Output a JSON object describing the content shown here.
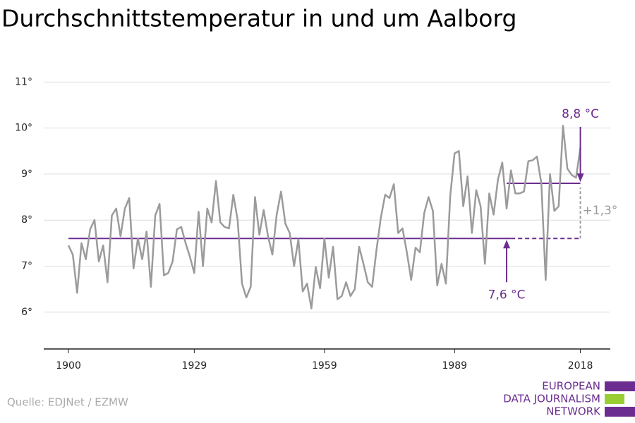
{
  "chart_data": {
    "type": "line",
    "title": "Durchschnittstemperatur in und um Aalborg",
    "x": [
      1900,
      1901,
      1902,
      1903,
      1904,
      1905,
      1906,
      1907,
      1908,
      1909,
      1910,
      1911,
      1912,
      1913,
      1914,
      1915,
      1916,
      1917,
      1918,
      1919,
      1920,
      1921,
      1922,
      1923,
      1924,
      1925,
      1926,
      1927,
      1928,
      1929,
      1930,
      1931,
      1932,
      1933,
      1934,
      1935,
      1936,
      1937,
      1938,
      1939,
      1940,
      1941,
      1942,
      1943,
      1944,
      1945,
      1946,
      1947,
      1948,
      1949,
      1950,
      1951,
      1952,
      1953,
      1954,
      1955,
      1956,
      1957,
      1958,
      1959,
      1960,
      1961,
      1962,
      1963,
      1964,
      1965,
      1966,
      1967,
      1968,
      1969,
      1970,
      1971,
      1972,
      1973,
      1974,
      1975,
      1976,
      1977,
      1978,
      1979,
      1980,
      1981,
      1982,
      1983,
      1984,
      1985,
      1986,
      1987,
      1988,
      1989,
      1990,
      1991,
      1992,
      1993,
      1994,
      1995,
      1996,
      1997,
      1998,
      1999,
      2000,
      2001,
      2002,
      2003,
      2004,
      2005,
      2006,
      2007,
      2008,
      2009,
      2010,
      2011,
      2012,
      2013,
      2014,
      2015,
      2016,
      2017,
      2018
    ],
    "series": [
      {
        "color": "#9b9b9b",
        "values": [
          7.45,
          7.25,
          6.42,
          7.5,
          7.15,
          7.8,
          8.0,
          7.1,
          7.45,
          6.65,
          8.1,
          8.25,
          7.65,
          8.25,
          8.48,
          6.95,
          7.6,
          7.15,
          7.75,
          6.55,
          8.1,
          8.35,
          6.8,
          6.85,
          7.1,
          7.8,
          7.85,
          7.5,
          7.2,
          6.85,
          8.18,
          7.0,
          8.25,
          7.95,
          8.85,
          7.95,
          7.85,
          7.82,
          8.55,
          8.0,
          6.62,
          6.32,
          6.55,
          8.5,
          7.68,
          8.22,
          7.65,
          7.25,
          8.12,
          8.62,
          7.92,
          7.72,
          7.0,
          7.58,
          6.45,
          6.62,
          6.08,
          6.98,
          6.52,
          7.6,
          6.75,
          7.42,
          6.28,
          6.35,
          6.65,
          6.35,
          6.5,
          7.42,
          7.05,
          6.65,
          6.55,
          7.35,
          8.05,
          8.55,
          8.48,
          8.78,
          7.72,
          7.82,
          7.3,
          6.7,
          7.4,
          7.3,
          8.15,
          8.5,
          8.2,
          6.58,
          7.05,
          6.62,
          8.52,
          9.45,
          9.5,
          8.3,
          8.95,
          7.72,
          8.65,
          8.3,
          7.05,
          8.58,
          8.12,
          8.88,
          9.25,
          8.25,
          9.08,
          8.58,
          8.58,
          8.62,
          9.28,
          9.3,
          9.38,
          8.8,
          6.7,
          9.0,
          8.2,
          8.3,
          10.05,
          9.12,
          8.98,
          8.92,
          9.57
        ]
      }
    ],
    "xlim": [
      1894.3,
      2024.9
    ],
    "xticks": [
      1900,
      1929,
      1959,
      1989,
      2018
    ],
    "ylim": [
      5.2,
      11.25
    ],
    "yticks": [
      {
        "value": 6,
        "label": "6°"
      },
      {
        "value": 7,
        "label": "7°"
      },
      {
        "value": 8,
        "label": "8°"
      },
      {
        "value": 9,
        "label": "9°"
      },
      {
        "value": 10,
        "label": "10°"
      },
      {
        "value": 11,
        "label": "11°"
      }
    ],
    "grid": true,
    "reference_lines": [
      {
        "value": 7.6,
        "label": "7,6 °C",
        "color": "#6b2d8f",
        "label_position": "below",
        "arrow_x": 2001,
        "segments": [
          {
            "from": 1900,
            "to": 2002,
            "style": "solid"
          },
          {
            "from": 2002,
            "to": 2018,
            "style": "dashed"
          }
        ]
      },
      {
        "value": 8.8,
        "label": "8,8 °C",
        "color": "#6b2d8f",
        "label_position": "above",
        "arrow_x": 2018,
        "segments": [
          {
            "from": 2001,
            "to": 2018,
            "style": "solid"
          }
        ]
      }
    ],
    "difference": {
      "label": "+1,3°",
      "x": 2018,
      "color": "#9b9b9b"
    }
  },
  "footer": {
    "source": "Quelle: EDJNet / EZMW",
    "logo": [
      "EUROPEAN",
      "DATA JOURNALISM",
      "NETWORK"
    ]
  }
}
